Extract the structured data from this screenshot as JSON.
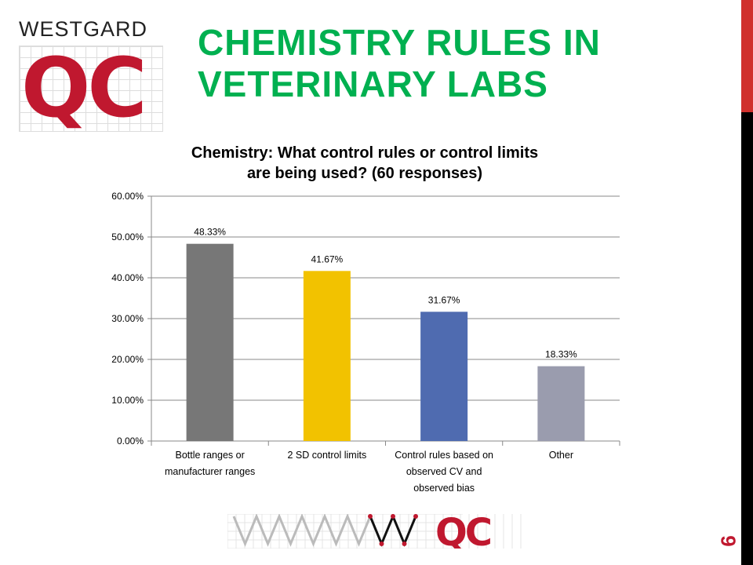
{
  "header": {
    "title_line1": "CHEMISTRY RULES IN",
    "title_line2": "VETERINARY LABS",
    "logo_word": "WESTGARD",
    "logo_mark": "QC"
  },
  "footer": {
    "logo_mark": "QC",
    "page_number": "9"
  },
  "colors": {
    "title": "#00b050",
    "accent": "#d0312d",
    "logo": "#c0182f"
  },
  "chart_data": {
    "type": "bar",
    "title_line1": "Chemistry: What control rules or control limits",
    "title_line2": "are being used? (60 responses)",
    "categories": [
      [
        "Bottle ranges or",
        "manufacturer ranges"
      ],
      [
        "2 SD control limits"
      ],
      [
        "Control rules based on",
        "observed CV and",
        "observed bias"
      ],
      [
        "Other"
      ]
    ],
    "values": [
      48.33,
      41.67,
      31.67,
      18.33
    ],
    "data_labels": [
      "48.33%",
      "41.67%",
      "31.67%",
      "18.33%"
    ],
    "bar_colors": [
      "#777777",
      "#f2c200",
      "#4f6bb0",
      "#9a9cae"
    ],
    "ylim": [
      0,
      60
    ],
    "yticks": [
      "0.00%",
      "10.00%",
      "20.00%",
      "30.00%",
      "40.00%",
      "50.00%",
      "60.00%"
    ],
    "grid": true,
    "legend": "none"
  }
}
